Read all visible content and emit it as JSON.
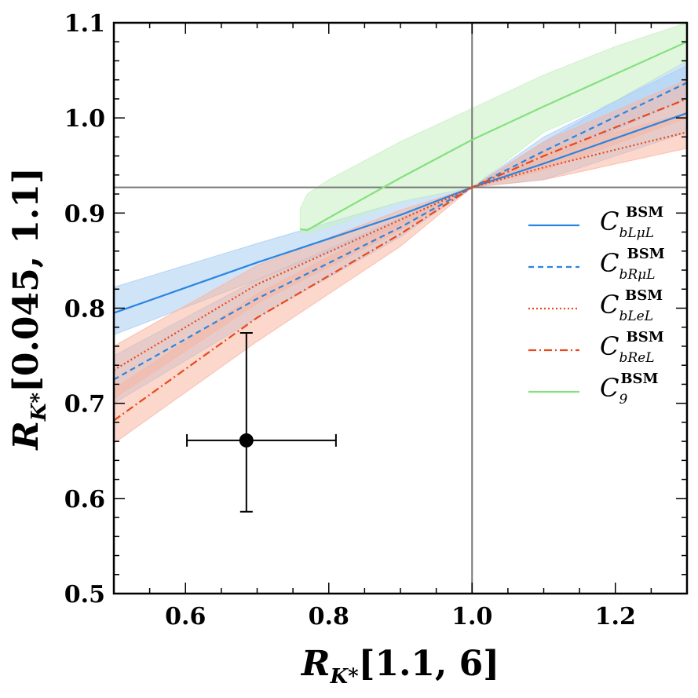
{
  "chart_data": {
    "type": "line",
    "xlabel": {
      "main": "R",
      "sub": "K*",
      "rest": "[1.1, 6]"
    },
    "ylabel": {
      "main": "R",
      "sub": "K*",
      "rest": "[0.045, 1.1]"
    },
    "xlim": [
      0.5,
      1.3
    ],
    "ylim": [
      0.5,
      1.1
    ],
    "xticks": [
      "0.6",
      "0.8",
      "1.0",
      "1.2"
    ],
    "yticks": [
      "0.5",
      "0.6",
      "0.7",
      "0.8",
      "0.9",
      "1.0",
      "1.1"
    ],
    "reference_lines": {
      "x": 1.0,
      "y": 0.927
    },
    "measurement": {
      "x": 0.685,
      "y": 0.661,
      "xerr": [
        0.602,
        0.81
      ],
      "yerr": [
        0.586,
        0.774
      ]
    },
    "series": [
      {
        "name": "C_{b_L mu_L}^{BSM}",
        "legend_main": "C",
        "legend_sup": "BSM",
        "legend_sub": "bLμL",
        "color": "#2a85e0",
        "band_color": "#a9cdf3",
        "dash": "",
        "x": [
          0.5,
          0.7,
          0.9,
          1.0,
          1.1,
          1.3
        ],
        "y": [
          0.795,
          0.848,
          0.898,
          0.927,
          0.952,
          1.005
        ],
        "band_upper": [
          0.822,
          0.868,
          0.912,
          0.927,
          0.975,
          1.06
        ],
        "band_lower": [
          0.772,
          0.83,
          0.888,
          0.927,
          0.935,
          0.985
        ]
      },
      {
        "name": "C_{b_R mu_L}^{BSM}",
        "legend_main": "C",
        "legend_sup": "BSM",
        "legend_sub": "bRμL",
        "color": "#2a85e0",
        "band_color": "#a9cdf3",
        "dash": "7,5",
        "x": [
          0.5,
          0.7,
          0.9,
          1.0,
          1.1,
          1.3
        ],
        "y": [
          0.725,
          0.81,
          0.885,
          0.927,
          0.965,
          1.037
        ],
        "band_upper": [
          0.75,
          0.83,
          0.895,
          0.927,
          0.98,
          1.055
        ],
        "band_lower": [
          0.7,
          0.79,
          0.875,
          0.927,
          0.955,
          1.02
        ]
      },
      {
        "name": "C_{b_L e_L}^{BSM}",
        "legend_main": "C",
        "legend_sup": "BSM",
        "legend_sub": "bLeL",
        "color": "#e8481c",
        "band_color": "#f7b7a3",
        "dash": "2,3",
        "x": [
          0.5,
          0.7,
          0.9,
          1.0,
          1.1,
          1.3
        ],
        "y": [
          0.735,
          0.825,
          0.893,
          0.927,
          0.948,
          0.985
        ],
        "band_upper": [
          0.76,
          0.845,
          0.903,
          0.927,
          0.965,
          1.005
        ],
        "band_lower": [
          0.705,
          0.805,
          0.882,
          0.927,
          0.935,
          0.968
        ]
      },
      {
        "name": "C_{b_R e_L}^{BSM}",
        "legend_main": "C",
        "legend_sup": "BSM",
        "legend_sub": "bReL",
        "color": "#e8481c",
        "band_color": "#f7b7a3",
        "dash": "10,4,2,4",
        "x": [
          0.5,
          0.7,
          0.9,
          1.0,
          1.1,
          1.3
        ],
        "y": [
          0.682,
          0.79,
          0.878,
          0.927,
          0.96,
          1.02
        ],
        "band_upper": [
          0.715,
          0.815,
          0.893,
          0.927,
          0.975,
          1.04
        ],
        "band_lower": [
          0.658,
          0.765,
          0.865,
          0.927,
          0.945,
          1.0
        ]
      },
      {
        "name": "C_9^{BSM}",
        "legend_main": "C",
        "legend_sup": "BSM",
        "legend_sub": "9",
        "color": "#86e07e",
        "band_color": "#c7f0c2",
        "dash": "",
        "x": [
          0.76,
          0.77,
          0.8,
          0.9,
          1.0,
          1.1,
          1.2,
          1.3
        ],
        "y": [
          0.883,
          0.882,
          0.895,
          0.937,
          0.977,
          1.012,
          1.046,
          1.08
        ],
        "band_upper": [
          0.905,
          0.92,
          0.935,
          0.975,
          1.01,
          1.045,
          1.075,
          1.1
        ],
        "band_lower": [
          0.88,
          0.878,
          0.885,
          0.912,
          0.927,
          0.985,
          1.018,
          1.06
        ]
      }
    ]
  }
}
